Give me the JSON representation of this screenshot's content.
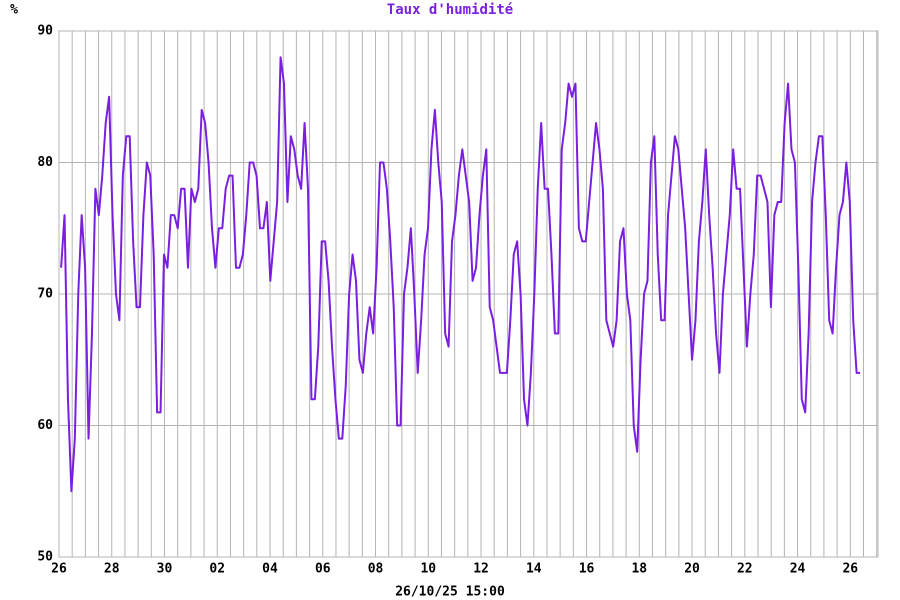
{
  "chart_data": {
    "type": "line",
    "title": "Taux d'humidité",
    "ylabel": "%",
    "xlabel": "26/10/25 15:00",
    "xlim": [
      0,
      31.05
    ],
    "ylim": [
      50,
      90
    ],
    "xticks": [
      {
        "value": 0,
        "label": "26"
      },
      {
        "value": 2,
        "label": "28"
      },
      {
        "value": 4,
        "label": "30"
      },
      {
        "value": 6,
        "label": "02"
      },
      {
        "value": 8,
        "label": "04"
      },
      {
        "value": 10,
        "label": "06"
      },
      {
        "value": 12,
        "label": "08"
      },
      {
        "value": 14,
        "label": "10"
      },
      {
        "value": 16,
        "label": "12"
      },
      {
        "value": 18,
        "label": "14"
      },
      {
        "value": 20,
        "label": "16"
      },
      {
        "value": 22,
        "label": "18"
      },
      {
        "value": 24,
        "label": "20"
      },
      {
        "value": 26,
        "label": "22"
      },
      {
        "value": 28,
        "label": "24"
      },
      {
        "value": 30,
        "label": "26"
      }
    ],
    "yticks": [
      50,
      60,
      70,
      80,
      90
    ],
    "grid": true,
    "x": [
      0.08,
      0.21,
      0.34,
      0.47,
      0.6,
      0.73,
      0.86,
      0.99,
      1.12,
      1.25,
      1.38,
      1.51,
      1.64,
      1.77,
      1.9,
      2.03,
      2.16,
      2.29,
      2.42,
      2.55,
      2.68,
      2.81,
      2.94,
      3.07,
      3.2,
      3.33,
      3.46,
      3.59,
      3.72,
      3.85,
      3.98,
      4.11,
      4.24,
      4.37,
      4.5,
      4.63,
      4.76,
      4.89,
      5.02,
      5.15,
      5.28,
      5.41,
      5.54,
      5.67,
      5.8,
      5.93,
      6.06,
      6.19,
      6.32,
      6.45,
      6.58,
      6.71,
      6.84,
      6.97,
      7.1,
      7.23,
      7.36,
      7.49,
      7.62,
      7.75,
      7.88,
      8.01,
      8.14,
      8.27,
      8.4,
      8.53,
      8.66,
      8.79,
      8.92,
      9.05,
      9.18,
      9.31,
      9.44,
      9.57,
      9.7,
      9.83,
      9.96,
      10.09,
      10.22,
      10.35,
      10.48,
      10.61,
      10.74,
      10.87,
      11,
      11.13,
      11.26,
      11.39,
      11.52,
      11.65,
      11.78,
      11.91,
      12.04,
      12.17,
      12.3,
      12.43,
      12.56,
      12.69,
      12.82,
      12.95,
      13.08,
      13.21,
      13.34,
      13.47,
      13.6,
      13.73,
      13.86,
      13.99,
      14.12,
      14.25,
      14.38,
      14.51,
      14.64,
      14.77,
      14.9,
      15.03,
      15.16,
      15.29,
      15.42,
      15.55,
      15.68,
      15.81,
      15.94,
      16.07,
      16.2,
      16.33,
      16.46,
      16.59,
      16.72,
      16.85,
      16.98,
      17.11,
      17.24,
      17.37,
      17.5,
      17.63,
      17.76,
      17.89,
      18.02,
      18.15,
      18.28,
      18.41,
      18.54,
      18.67,
      18.8,
      18.93,
      19.06,
      19.19,
      19.32,
      19.45,
      19.58,
      19.71,
      19.84,
      19.97,
      20.1,
      20.23,
      20.36,
      20.49,
      20.62,
      20.75,
      20.88,
      21.01,
      21.14,
      21.27,
      21.4,
      21.53,
      21.66,
      21.79,
      21.92,
      22.05,
      22.18,
      22.31,
      22.44,
      22.57,
      22.7,
      22.83,
      22.96,
      23.09,
      23.22,
      23.35,
      23.48,
      23.61,
      23.74,
      23.87,
      24,
      24.13,
      24.26,
      24.39,
      24.52,
      24.65,
      24.78,
      24.91,
      25.04,
      25.17,
      25.3,
      25.43,
      25.56,
      25.69,
      25.82,
      25.95,
      26.08,
      26.21,
      26.34,
      26.47,
      26.6,
      26.73,
      26.86,
      26.99,
      27.12,
      27.25,
      27.38,
      27.51,
      27.64,
      27.77,
      27.9,
      28.03,
      28.16,
      28.29,
      28.42,
      28.55,
      28.68,
      28.81,
      28.94,
      29.07,
      29.2,
      29.33,
      29.46,
      29.59,
      29.72,
      29.85,
      29.98,
      30.11,
      30.24,
      30.37
    ],
    "series": [
      {
        "color": "#7a1fe0",
        "values": [
          72,
          76,
          62,
          55,
          59,
          70,
          76,
          72,
          59,
          67,
          78,
          76,
          79,
          83,
          85,
          76,
          70,
          68,
          79,
          82,
          82,
          74,
          69,
          69,
          76,
          80,
          79,
          73,
          61,
          61,
          73,
          72,
          76,
          76,
          75,
          78,
          78,
          72,
          78,
          77,
          78,
          84,
          83,
          80,
          75,
          72,
          75,
          75,
          78,
          79,
          79,
          72,
          72,
          73,
          76,
          80,
          80,
          79,
          75,
          75,
          77,
          71,
          74,
          77,
          88,
          86,
          77,
          82,
          81,
          79,
          78,
          83,
          78,
          62,
          62,
          66,
          74,
          74,
          71,
          66,
          62,
          59,
          59,
          63,
          70,
          73,
          71,
          65,
          64,
          67,
          69,
          67,
          72,
          80,
          80,
          78,
          74,
          69,
          60,
          60,
          70,
          72,
          75,
          70,
          64,
          68,
          73,
          75,
          81,
          84,
          80,
          77,
          67,
          66,
          74,
          76,
          79,
          81,
          79,
          77,
          71,
          72,
          76,
          79,
          81,
          69,
          68,
          66,
          64,
          64,
          64,
          68,
          73,
          74,
          70,
          62,
          60,
          64,
          70,
          78,
          83,
          78,
          78,
          73,
          67,
          67,
          81,
          83,
          86,
          85,
          86,
          75,
          74,
          74,
          77,
          80,
          83,
          81,
          78,
          68,
          67,
          66,
          68,
          74,
          75,
          70,
          68,
          60,
          58,
          65,
          70,
          71,
          80,
          82,
          73,
          68,
          68,
          76,
          79,
          82,
          81,
          78,
          75,
          70,
          65,
          68,
          74,
          77,
          81,
          76,
          72,
          67,
          64,
          70,
          73,
          76,
          81,
          78,
          78,
          72,
          66,
          70,
          73,
          79,
          79,
          78,
          77,
          69,
          76,
          77,
          77,
          83,
          86,
          81,
          80,
          72,
          62,
          61,
          67,
          77,
          80,
          82,
          82,
          76,
          68,
          67,
          72,
          76,
          77,
          80,
          77,
          68,
          64,
          64
        ]
      }
    ]
  }
}
